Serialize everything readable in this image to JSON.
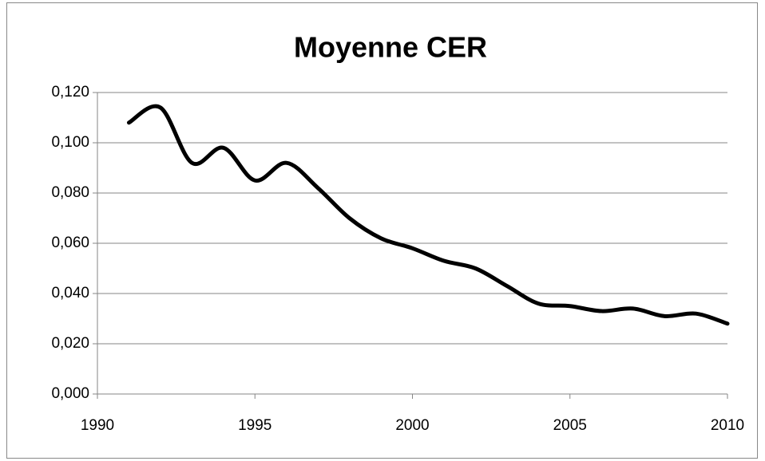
{
  "chart_data": {
    "type": "line",
    "title": "Moyenne CER",
    "x": [
      1991,
      1992,
      1993,
      1994,
      1995,
      1996,
      1997,
      1998,
      1999,
      2000,
      2001,
      2002,
      2003,
      2004,
      2005,
      2006,
      2007,
      2008,
      2009,
      2010
    ],
    "values": [
      0.108,
      0.114,
      0.092,
      0.098,
      0.085,
      0.092,
      0.082,
      0.07,
      0.062,
      0.058,
      0.053,
      0.05,
      0.043,
      0.036,
      0.035,
      0.033,
      0.034,
      0.031,
      0.032,
      0.028
    ],
    "color": "#000000",
    "smooth": true,
    "xlim": [
      1990,
      2010
    ],
    "xticks": [
      1990,
      1995,
      2000,
      2005,
      2010
    ],
    "ylim": [
      0,
      0.12
    ],
    "yticks": [
      {
        "value": 0,
        "label": "0,000"
      },
      {
        "value": 0.02,
        "label": "0,020"
      },
      {
        "value": 0.04,
        "label": "0,040"
      },
      {
        "value": 0.06,
        "label": "0,060"
      },
      {
        "value": 0.08,
        "label": "0,080"
      },
      {
        "value": 0.1,
        "label": "0,100"
      },
      {
        "value": 0.12,
        "label": "0,120"
      }
    ],
    "grid": true
  }
}
